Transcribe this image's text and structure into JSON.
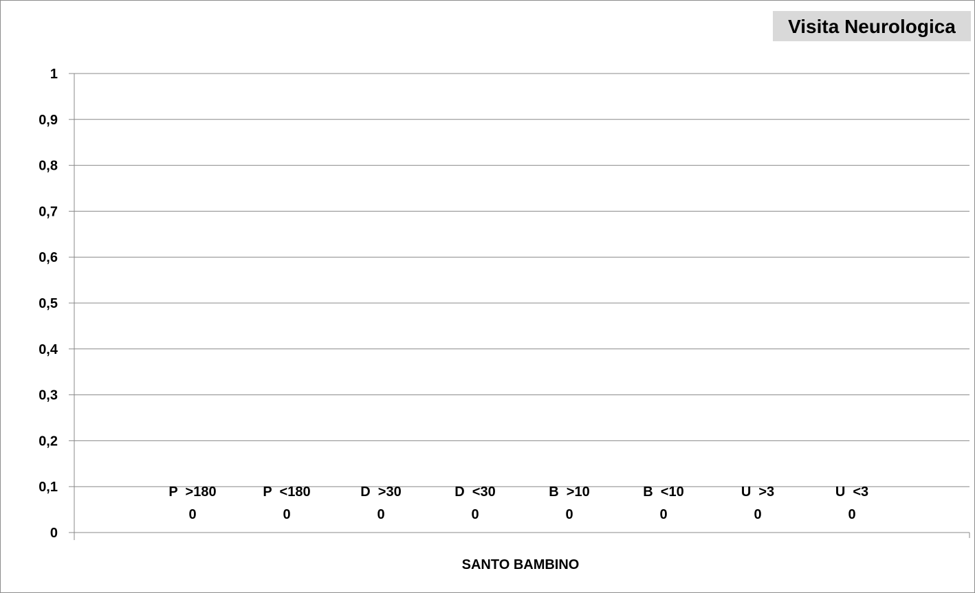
{
  "chart_data": {
    "type": "bar",
    "title": "Visita Neurologica",
    "xlabel": "SANTO BAMBINO",
    "ylabel": "",
    "ylim": [
      0,
      1
    ],
    "grid": true,
    "yticks": [
      "0",
      "0,1",
      "0,2",
      "0,3",
      "0,4",
      "0,5",
      "0,6",
      "0,7",
      "0,8",
      "0,9",
      "1"
    ],
    "categories": [
      "P  >180",
      "P  <180",
      "D  >30",
      "D  <30",
      "B  >10",
      "B  <10",
      "U  >3",
      "U  <3"
    ],
    "values": [
      0,
      0,
      0,
      0,
      0,
      0,
      0,
      0
    ],
    "value_labels": [
      "0",
      "0",
      "0",
      "0",
      "0",
      "0",
      "0",
      "0"
    ],
    "colors": {
      "title_bg": "#d9d9d9",
      "grid": "#888888",
      "axis": "#888888",
      "frame": "#8c8c8c"
    }
  }
}
